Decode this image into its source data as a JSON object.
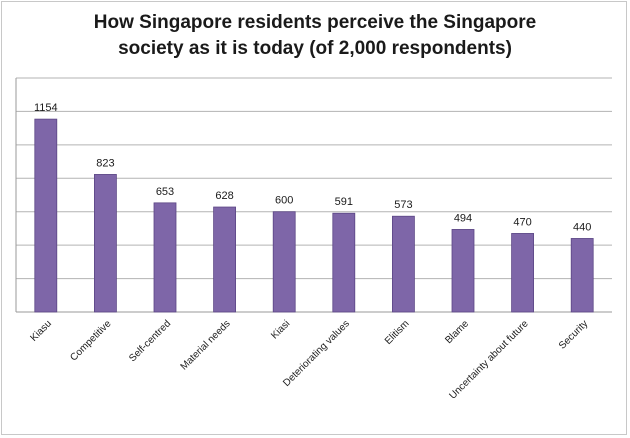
{
  "chart_data": {
    "type": "bar",
    "title_lines": [
      "How Singapore residents perceive the Singapore",
      "society as it is today (of 2,000 respondents)"
    ],
    "categories": [
      "Kiasu",
      "Competitive",
      "Self-centred",
      "Material needs",
      "Kiasi",
      "Deteriorating values",
      "Elitism",
      "Blame",
      "Uncertainty about future",
      "Security"
    ],
    "values": [
      1154,
      823,
      653,
      628,
      600,
      591,
      573,
      494,
      470,
      440
    ],
    "ylim": [
      0,
      1400
    ],
    "grid": true,
    "bar_color": "#7e66a8",
    "bar_stroke": "#5c4685",
    "legend": "none"
  }
}
